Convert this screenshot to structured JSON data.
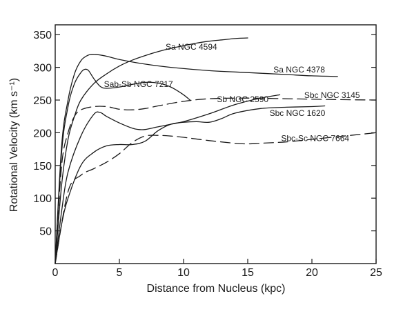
{
  "chart_data": {
    "type": "line",
    "title": "",
    "xlabel": "Distance from Nucleus (kpc)",
    "ylabel": "Rotational Velocity (km s⁻¹)",
    "xlim": [
      0,
      25
    ],
    "ylim": [
      0,
      365
    ],
    "xticks": [
      0,
      5,
      10,
      15,
      20,
      25
    ],
    "yticks": [
      50,
      100,
      150,
      200,
      250,
      300,
      350
    ],
    "xtick_labels": [
      "0",
      "5",
      "10",
      "15",
      "20",
      "25"
    ],
    "ytick_labels": [
      "50",
      "100",
      "150",
      "200",
      "250",
      "300",
      "350"
    ],
    "grid": false,
    "series": [
      {
        "name": "Sa NGC 4594",
        "style": "solid",
        "x": [
          0,
          0.5,
          1,
          1.5,
          2,
          3,
          4,
          5,
          6,
          7,
          8,
          9,
          10,
          11,
          12,
          13,
          14,
          15
        ],
        "y": [
          0,
          120,
          190,
          225,
          250,
          275,
          290,
          302,
          311,
          318,
          324,
          329,
          333,
          337,
          340,
          342,
          344,
          345
        ]
      },
      {
        "name": "Sa NGC 4378",
        "style": "solid",
        "x": [
          0,
          0.5,
          1,
          1.5,
          2,
          2.5,
          3,
          4,
          5,
          7,
          9,
          12,
          15,
          18,
          20,
          22
        ],
        "y": [
          0,
          180,
          250,
          290,
          310,
          318,
          320,
          317,
          312,
          305,
          300,
          295,
          292,
          289,
          287,
          286
        ]
      },
      {
        "name": "Sab-Sb NGC 7217",
        "style": "solid",
        "x": [
          0,
          0.5,
          1,
          1.5,
          2,
          2.3,
          2.6,
          3,
          3.5,
          4,
          5,
          6,
          7,
          8,
          9,
          10,
          10.5
        ],
        "y": [
          0,
          170,
          240,
          275,
          292,
          297,
          295,
          283,
          271,
          268,
          270,
          274,
          277,
          276,
          270,
          258,
          250
        ]
      },
      {
        "name": "Sb NGC 2590",
        "style": "solid",
        "x": [
          0,
          0.5,
          1,
          2,
          3,
          3.5,
          4,
          5,
          6,
          6.5,
          7,
          8,
          9,
          10,
          12,
          14,
          16,
          17.5
        ],
        "y": [
          0,
          80,
          140,
          195,
          228,
          231,
          225,
          215,
          207,
          205,
          205,
          209,
          213,
          217,
          229,
          243,
          253,
          258
        ]
      },
      {
        "name": "Sbc NGC 3145",
        "style": "dashed",
        "x": [
          0,
          0.5,
          1,
          1.5,
          2,
          3,
          4,
          5,
          6,
          7,
          8,
          10,
          12,
          15,
          18,
          21,
          25
        ],
        "y": [
          0,
          150,
          200,
          225,
          235,
          240,
          240,
          236,
          235,
          237,
          241,
          248,
          252,
          253,
          252,
          251,
          250
        ]
      },
      {
        "name": "Sbc NGC 1620",
        "style": "solid",
        "x": [
          0,
          0.5,
          1,
          2,
          3,
          4,
          5,
          6,
          7,
          8,
          9,
          10,
          11,
          12,
          13,
          14,
          16,
          18,
          20,
          21
        ],
        "y": [
          0,
          60,
          100,
          150,
          170,
          180,
          182,
          182,
          187,
          203,
          213,
          216,
          217,
          216,
          222,
          230,
          237,
          239,
          240,
          241
        ]
      },
      {
        "name": "Sbc-Sc NGC 7664",
        "style": "dashed",
        "x": [
          0,
          1,
          2,
          3,
          4,
          5,
          6,
          7,
          8,
          9,
          10,
          12,
          14,
          15,
          16,
          18,
          20,
          22,
          25
        ],
        "y": [
          0,
          110,
          135,
          145,
          155,
          168,
          185,
          195,
          196,
          195,
          193,
          188,
          184,
          183,
          184,
          186,
          190,
          194,
          200
        ]
      }
    ],
    "annotations": [
      {
        "text": "Sa NGC 4594",
        "series": 0,
        "x": 8.6,
        "y": 327
      },
      {
        "text": "Sa NGC 4378",
        "series": 1,
        "x": 17.0,
        "y": 292
      },
      {
        "text": "Sab-Sb NGC 7217",
        "series": 2,
        "x": 3.8,
        "y": 270
      },
      {
        "text": "Sb NGC 2590",
        "series": 3,
        "x": 12.6,
        "y": 247
      },
      {
        "text": "Sbc NGC 3145",
        "series": 4,
        "x": 19.4,
        "y": 253
      },
      {
        "text": "Sbc NGC 1620",
        "series": 5,
        "x": 16.7,
        "y": 226
      },
      {
        "text": "Sbc-Sc NGC 7664",
        "series": 6,
        "x": 17.6,
        "y": 187
      }
    ]
  }
}
